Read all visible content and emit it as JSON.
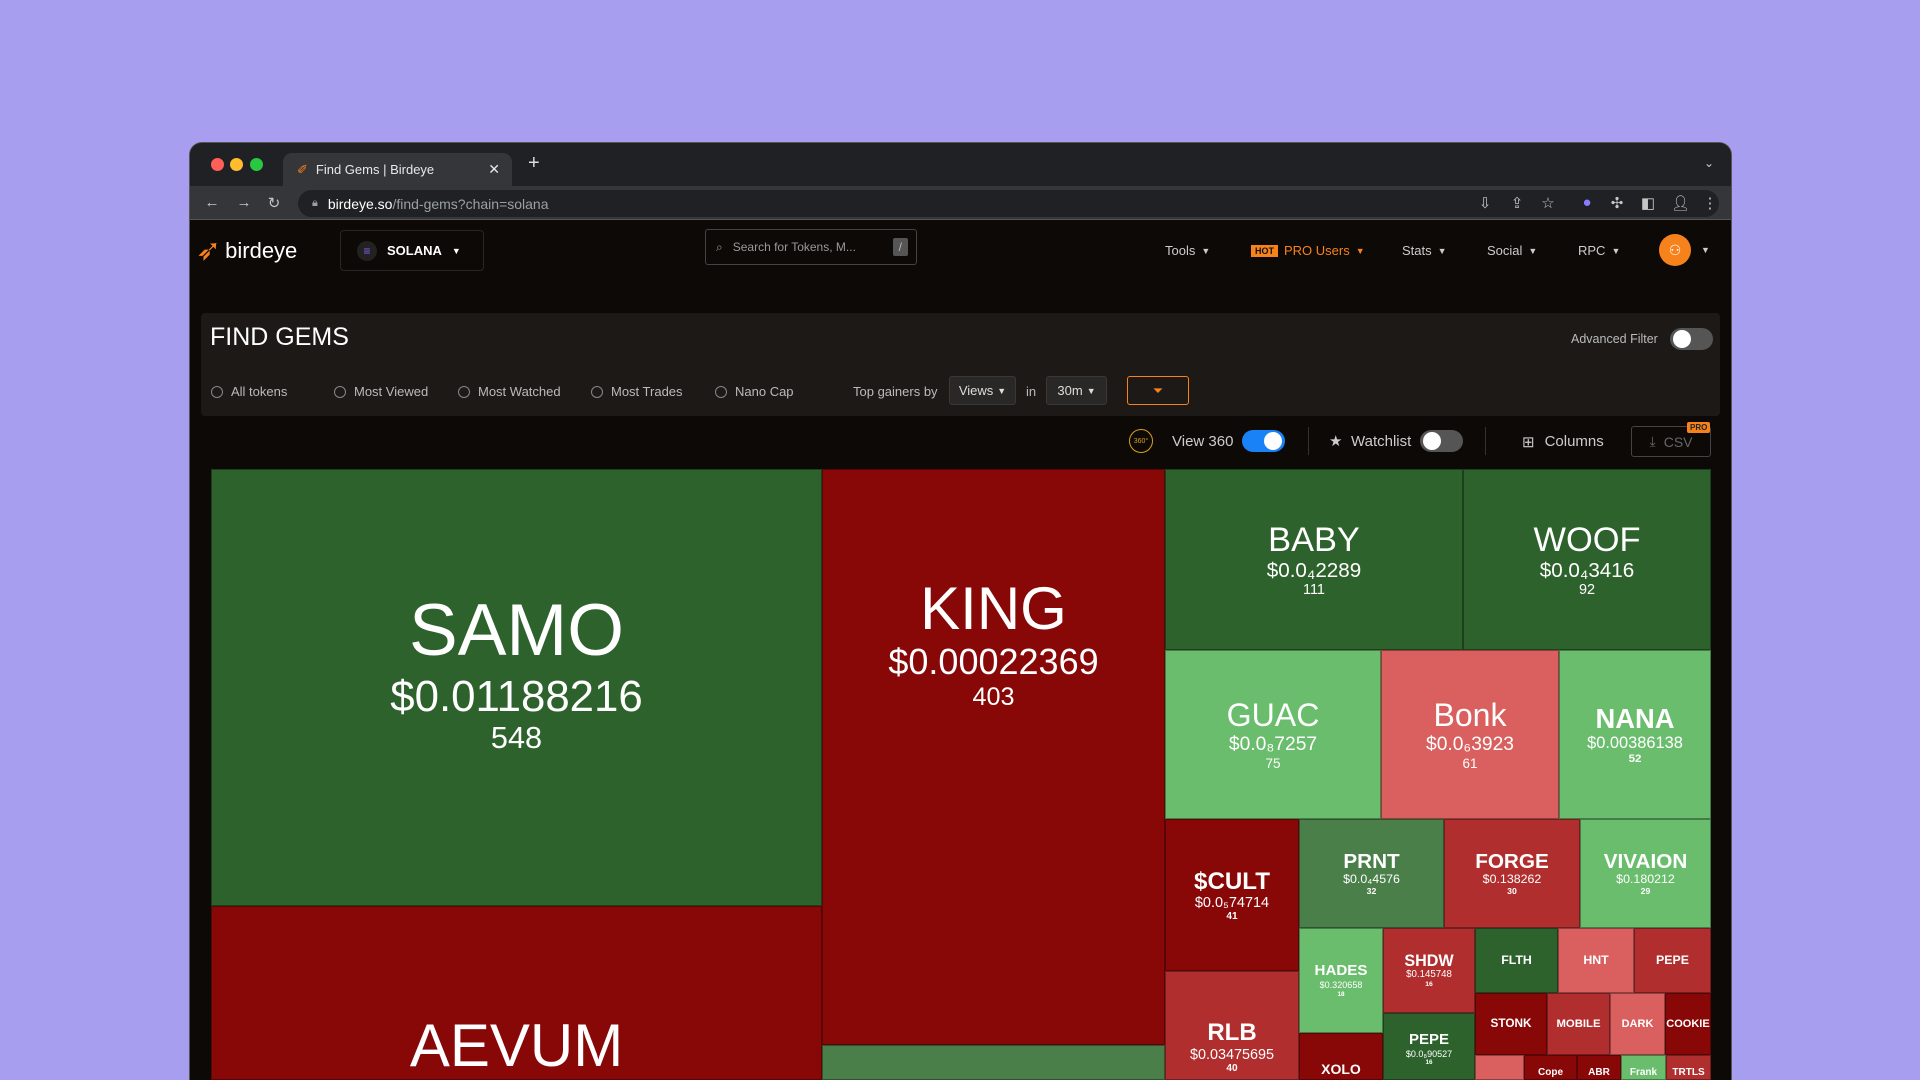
{
  "browser": {
    "tab_title": "Find Gems | Birdeye",
    "url_domain": "birdeye.so",
    "url_path": "/find-gems?chain=solana"
  },
  "header": {
    "logo_text": "birdeye",
    "chain": "SOLANA",
    "search_placeholder": "Search for Tokens, M...",
    "search_shortcut": "/",
    "nav": [
      {
        "label": "Tools"
      },
      {
        "label": "PRO Users",
        "badge": "HOT"
      },
      {
        "label": "Stats"
      },
      {
        "label": "Social"
      },
      {
        "label": "RPC"
      }
    ]
  },
  "filters": {
    "title": "FIND GEMS",
    "advanced_filter_label": "Advanced Filter",
    "advanced_filter_on": false,
    "options": [
      "All tokens",
      "Most Viewed",
      "Most Watched",
      "Most Trades",
      "Nano Cap"
    ],
    "top_gainers_label": "Top gainers by",
    "top_gainers_value": "Views",
    "in_label": "in",
    "timeframe": "30m"
  },
  "toolbar": {
    "view360_label": "View 360",
    "view360_icon_text": "360°",
    "view360_on": true,
    "watchlist_label": "Watchlist",
    "watchlist_on": false,
    "columns_label": "Columns",
    "csv_label": "CSV",
    "pro_badge": "PRO"
  },
  "colors": {
    "accent": "#f7821b",
    "toggle_on": "#1a82f7",
    "dark_green": "#2e622d",
    "mid_green": "#4a7f4a",
    "light_green": "#6bbd6e",
    "dark_red": "#880808",
    "mid_red": "#b12e2e",
    "light_red": "#d9605e"
  },
  "treemap": [
    {
      "name": "SAMO",
      "price": "$0.01188216",
      "views": "548",
      "color": "#2e622d"
    },
    {
      "name": "AEVUM",
      "price": "",
      "views": "",
      "color": "#880808"
    },
    {
      "name": "KING",
      "price": "$0.00022369",
      "views": "403",
      "color": "#880808"
    },
    {
      "name": "",
      "price": "",
      "views": "",
      "color": "#4a7f4a"
    },
    {
      "name": "BABY",
      "price": "$0.0₄2289",
      "views": "111",
      "color": "#2e622d"
    },
    {
      "name": "WOOF",
      "price": "$0.0₄3416",
      "views": "92",
      "color": "#2e622d"
    },
    {
      "name": "GUAC",
      "price": "$0.0₈7257",
      "views": "75",
      "color": "#6bbd6e"
    },
    {
      "name": "Bonk",
      "price": "$0.0₆3923",
      "views": "61",
      "color": "#d9605e"
    },
    {
      "name": "NANA",
      "price": "$0.00386138",
      "views": "52",
      "color": "#6bbd6e"
    },
    {
      "name": "$CULT",
      "price": "$0.0₅74714",
      "views": "41",
      "color": "#880808"
    },
    {
      "name": "RLB",
      "price": "$0.03475695",
      "views": "40",
      "color": "#b12e2e"
    },
    {
      "name": "PRNT",
      "price": "$0.0₄4576",
      "views": "32",
      "color": "#4a7f4a"
    },
    {
      "name": "FORGE",
      "price": "$0.138262",
      "views": "30",
      "color": "#b12e2e"
    },
    {
      "name": "VIVAION",
      "price": "$0.180212",
      "views": "29",
      "color": "#6bbd6e"
    },
    {
      "name": "HADES",
      "price": "$0.320658",
      "views": "18",
      "color": "#6bbd6e"
    },
    {
      "name": "XOLO",
      "price": "",
      "views": "",
      "color": "#880808"
    },
    {
      "name": "SHDW",
      "price": "$0.145748",
      "views": "16",
      "color": "#b12e2e"
    },
    {
      "name": "PEPE",
      "price": "$0.0₈90527",
      "views": "16",
      "color": "#2e622d"
    },
    {
      "name": "FLTH",
      "price": "",
      "views": "",
      "color": "#2e622d"
    },
    {
      "name": "HNT",
      "price": "",
      "views": "",
      "color": "#d9605e"
    },
    {
      "name": "PEPE",
      "price": "",
      "views": "",
      "color": "#b12e2e"
    },
    {
      "name": "STONK",
      "price": "",
      "views": "",
      "color": "#880808"
    },
    {
      "name": "MOBILE",
      "price": "",
      "views": "",
      "color": "#b12e2e"
    },
    {
      "name": "DARK",
      "price": "",
      "views": "",
      "color": "#d9605e"
    },
    {
      "name": "COOKIE",
      "price": "",
      "views": "",
      "color": "#880808"
    },
    {
      "name": "",
      "price": "",
      "views": "",
      "color": "#d9605e"
    },
    {
      "name": "Cope",
      "price": "",
      "views": "",
      "color": "#880808"
    },
    {
      "name": "ABR",
      "price": "",
      "views": "",
      "color": "#880808"
    },
    {
      "name": "Frank",
      "price": "",
      "views": "",
      "color": "#6bbd6e"
    },
    {
      "name": "TRTLS",
      "price": "",
      "views": "",
      "color": "#b12e2e"
    }
  ]
}
